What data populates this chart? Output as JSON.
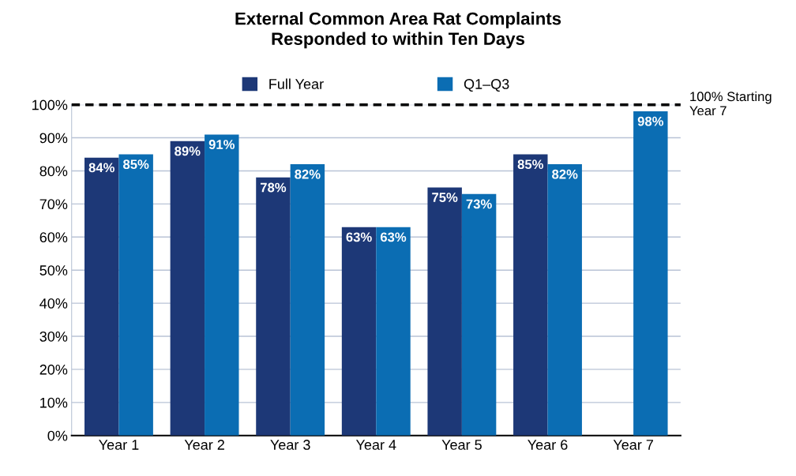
{
  "chart_data": {
    "type": "bar",
    "title": "External Common Area Rat Complaints\nResponded to within Ten Days",
    "categories": [
      "Year 1",
      "Year 2",
      "Year 3",
      "Year 4",
      "Year 5",
      "Year 6",
      "Year 7"
    ],
    "series": [
      {
        "name": "Full Year",
        "color": "#1d3877",
        "values": [
          84,
          89,
          78,
          63,
          75,
          85,
          null
        ],
        "value_labels": [
          "84%",
          "89%",
          "78%",
          "63%",
          "75%",
          "85%",
          null
        ]
      },
      {
        "name": "Q1–Q3",
        "color": "#0b6db3",
        "values": [
          85,
          91,
          82,
          63,
          73,
          82,
          98
        ],
        "value_labels": [
          "85%",
          "91%",
          "82%",
          "63%",
          "73%",
          "82%",
          "98%"
        ]
      }
    ],
    "ylim": [
      0,
      100
    ],
    "yticks": [
      {
        "value": 0,
        "label": "0%"
      },
      {
        "value": 10,
        "label": "10%"
      },
      {
        "value": 20,
        "label": "20%"
      },
      {
        "value": 30,
        "label": "30%"
      },
      {
        "value": 40,
        "label": "40%"
      },
      {
        "value": 50,
        "label": "50%"
      },
      {
        "value": 60,
        "label": "60%"
      },
      {
        "value": 70,
        "label": "70%"
      },
      {
        "value": 80,
        "label": "80%"
      },
      {
        "value": 90,
        "label": "90%"
      },
      {
        "value": 100,
        "label": "100%"
      }
    ],
    "ref_lines": [
      {
        "axis": "y",
        "value": 100,
        "label": "100% Starting\nYear 7",
        "color": "#000000",
        "line_style": "dashed"
      }
    ],
    "grid": "y",
    "legend": "top"
  }
}
